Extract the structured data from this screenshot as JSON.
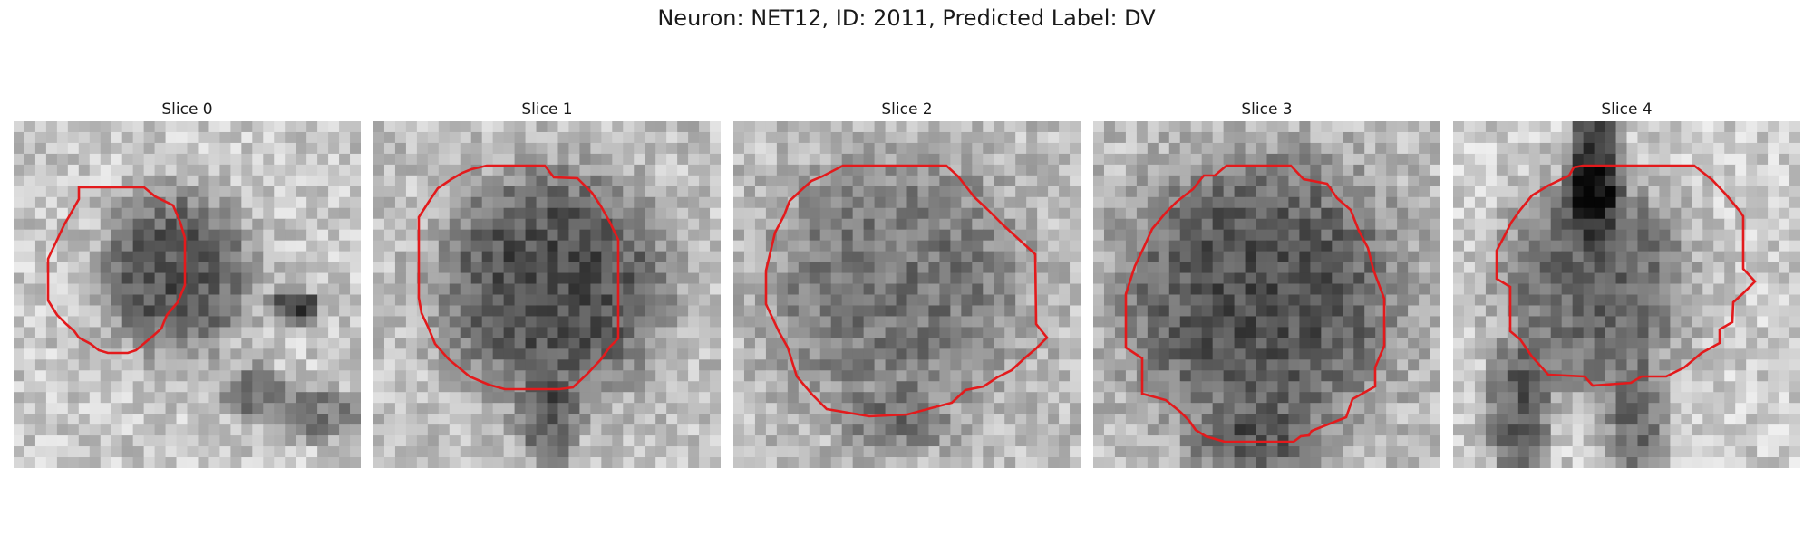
{
  "figure": {
    "title": "Neuron: NET12, ID: 2011, Predicted Label: DV"
  },
  "slices": [
    {
      "title": "Slice 0"
    },
    {
      "title": "Slice 1"
    },
    {
      "title": "Slice 2"
    },
    {
      "title": "Slice 3"
    },
    {
      "title": "Slice 4"
    }
  ],
  "colors": {
    "contour": "#e31a1c",
    "background": "#ffffff"
  }
}
